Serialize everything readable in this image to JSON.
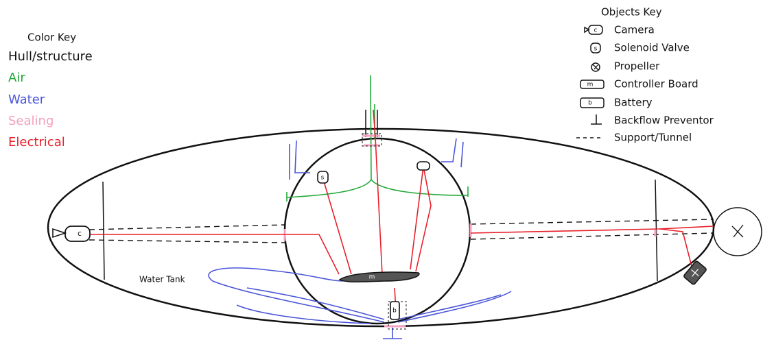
{
  "color_key": {
    "title": "Color Key",
    "items": [
      "Hull/structure",
      "Air",
      "Water",
      "Sealing",
      "Electrical"
    ]
  },
  "objects_key": {
    "title": "Objects Key",
    "items": [
      {
        "glyph": "c",
        "label": "Camera"
      },
      {
        "glyph": "s",
        "label": "Solenoid Valve"
      },
      {
        "label": "Propeller"
      },
      {
        "glyph": "m",
        "label": "Controller Board"
      },
      {
        "glyph": "b",
        "label": "Battery"
      },
      {
        "label": "Backflow Preventor"
      },
      {
        "label": "Support/Tunnel"
      }
    ]
  },
  "labels": {
    "water_tank": "Water Tank"
  }
}
